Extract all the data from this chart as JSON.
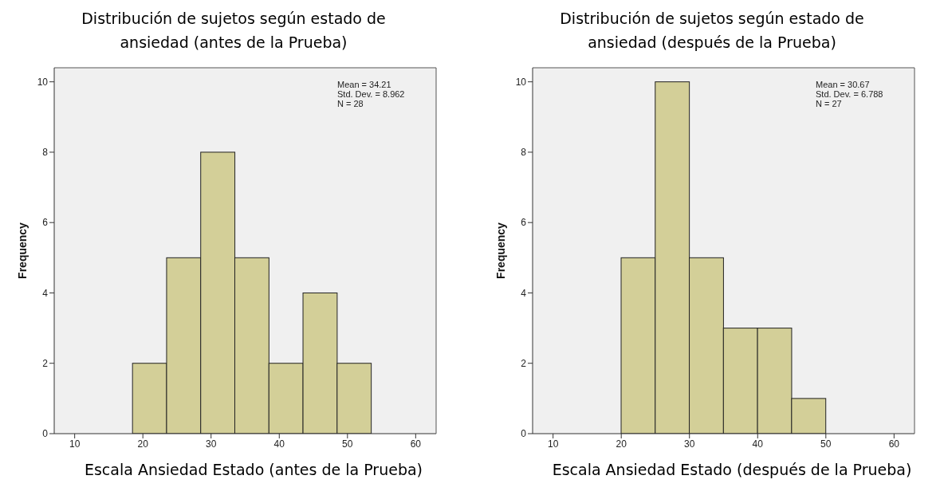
{
  "chart_data": [
    {
      "type": "histogram",
      "title": "Distribución de sujetos según estado de ansiedad (antes de la Prueba)",
      "xlabel": "Escala Ansiedad Estado (antes de la Prueba)",
      "ylabel": "Frequency",
      "bins": [
        18.5,
        23.5,
        28.5,
        33.5,
        38.5,
        43.5,
        48.5,
        53.5
      ],
      "values": [
        2,
        5,
        8,
        5,
        2,
        4,
        2
      ],
      "color": "#d3cf98",
      "xlim": [
        7,
        63
      ],
      "xticks": [
        10,
        20,
        30,
        40,
        50,
        60
      ],
      "ylim": [
        0,
        10.4
      ],
      "yticks": [
        0,
        2,
        4,
        6,
        8,
        10
      ],
      "grid": false,
      "annotations": [
        "Mean = 34.21",
        "Std. Dev. = 8.962",
        "N = 28"
      ]
    },
    {
      "type": "histogram",
      "title": "Distribución de sujetos según estado de ansiedad (después de la Prueba)",
      "xlabel": "Escala Ansiedad Estado (después de la Prueba)",
      "ylabel": "Frequency",
      "bins": [
        20,
        25,
        30,
        35,
        40,
        45,
        50
      ],
      "values": [
        5,
        10,
        5,
        3,
        3,
        1
      ],
      "color": "#d3cf98",
      "xlim": [
        7,
        63
      ],
      "xticks": [
        10,
        20,
        30,
        40,
        50,
        60
      ],
      "ylim": [
        0,
        10.4
      ],
      "yticks": [
        0,
        2,
        4,
        6,
        8,
        10
      ],
      "grid": false,
      "annotations": [
        "Mean = 30.67",
        "Std. Dev. = 6.788",
        "N = 27"
      ]
    }
  ]
}
